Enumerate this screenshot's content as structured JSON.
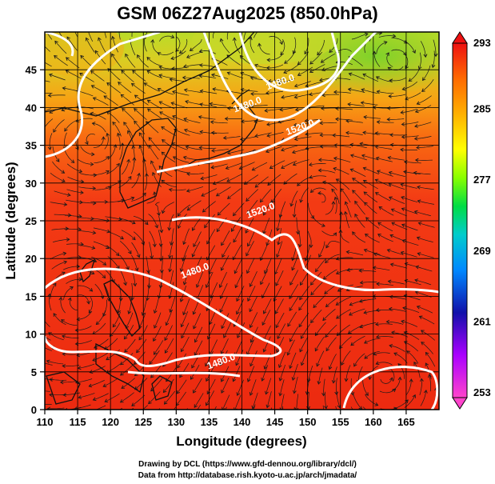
{
  "title": "GSM 06Z27Aug2025 (850.0hPa)",
  "axes": {
    "xlabel": "Longitude (degrees)",
    "ylabel": "Latitude  (degrees)",
    "x_ticks": [
      "110",
      "115",
      "120",
      "125",
      "130",
      "135",
      "140",
      "145",
      "150",
      "155",
      "160",
      "165"
    ],
    "y_ticks": [
      "0",
      "5",
      "10",
      "15",
      "20",
      "25",
      "30",
      "35",
      "40",
      "45"
    ]
  },
  "colorbar": {
    "labels": [
      "293",
      "285",
      "277",
      "269",
      "261",
      "253"
    ],
    "stops": [
      "#ee1111",
      "#ff6a00",
      "#ffb000",
      "#ffff00",
      "#88ff00",
      "#00dd44",
      "#00cccc",
      "#0088ff",
      "#1111aa",
      "#aa00ff",
      "#ff44cc"
    ]
  },
  "contour_labels": [
    {
      "text": "1480.0",
      "lon": 146,
      "lat": 43
    },
    {
      "text": "1480.0",
      "lon": 141,
      "lat": 40
    },
    {
      "text": "1520.0",
      "lon": 149,
      "lat": 37
    },
    {
      "text": "1520.0",
      "lon": 143,
      "lat": 26
    },
    {
      "text": "1480.0",
      "lon": 133,
      "lat": 18
    },
    {
      "text": "1480.0",
      "lon": 137,
      "lat": 6
    }
  ],
  "credits": [
    "Drawing by DCL (https://www.gfd-dennou.org/library/dcl/)",
    "Data from http://database.rish.kyoto-u.ac.jp/arch/jmadata/"
  ]
}
